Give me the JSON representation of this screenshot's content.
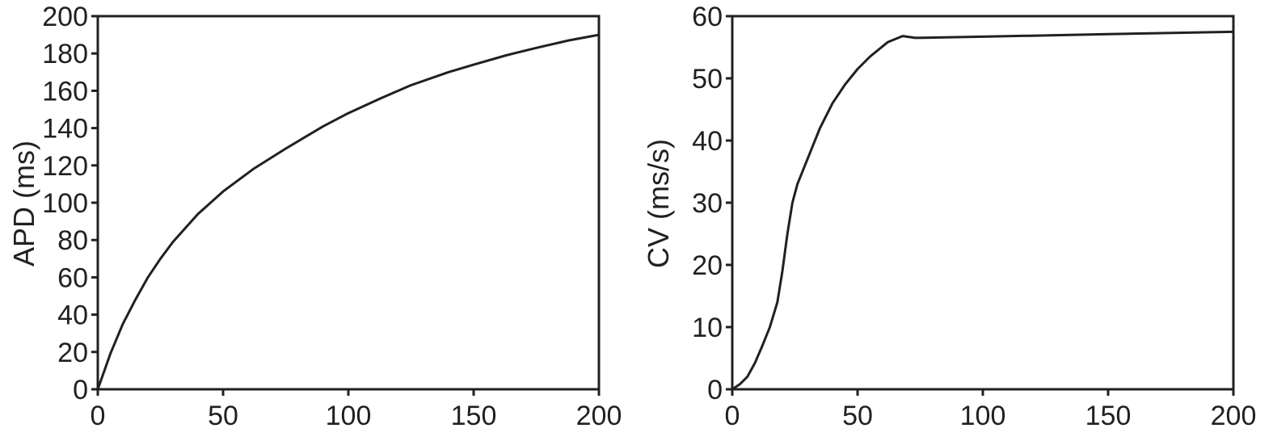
{
  "chart_data": [
    {
      "type": "line",
      "title": "",
      "xlabel": "",
      "ylabel": "APD (ms)",
      "xlim": [
        0,
        200
      ],
      "ylim": [
        0,
        200
      ],
      "xticks": [
        0,
        50,
        100,
        150,
        200
      ],
      "yticks": [
        0,
        20,
        40,
        60,
        80,
        100,
        120,
        140,
        160,
        180,
        200
      ],
      "xtick_labels": [
        "0",
        "50",
        "100",
        "150",
        "200"
      ],
      "ytick_labels": [
        "0",
        "20",
        "40",
        "60",
        "80",
        "100",
        "120",
        "140",
        "160",
        "180",
        "200"
      ],
      "grid": false,
      "line_color": "#231f20",
      "series": [
        {
          "x": [
            0,
            5,
            10,
            15,
            20,
            25,
            30,
            40,
            50,
            62,
            75,
            90,
            100,
            113,
            125,
            140,
            150,
            163,
            175,
            188,
            200
          ],
          "y": [
            0,
            19,
            35,
            48,
            60,
            70,
            79,
            94,
            106,
            118,
            129,
            141,
            148,
            156,
            163,
            170,
            174,
            179,
            183,
            187,
            190
          ]
        }
      ]
    },
    {
      "type": "line",
      "title": "",
      "xlabel": "",
      "ylabel": "CV (ms/s)",
      "xlim": [
        0,
        200
      ],
      "ylim": [
        0,
        60
      ],
      "xticks": [
        0,
        50,
        100,
        150,
        200
      ],
      "yticks": [
        0,
        10,
        20,
        30,
        40,
        50,
        60
      ],
      "xtick_labels": [
        "0",
        "50",
        "100",
        "150",
        "200"
      ],
      "ytick_labels": [
        "0",
        "10",
        "20",
        "30",
        "40",
        "50",
        "60"
      ],
      "grid": false,
      "line_color": "#231f20",
      "series": [
        {
          "x": [
            0,
            3,
            6,
            9,
            12,
            15,
            18,
            19,
            20,
            21,
            22,
            23,
            24,
            26,
            28,
            30,
            35,
            40,
            45,
            50,
            55,
            62,
            68,
            73,
            100,
            150,
            200
          ],
          "y": [
            0,
            0.8,
            2,
            4.2,
            7,
            10,
            14,
            16.5,
            19,
            22,
            25,
            27.5,
            30,
            33,
            35,
            37,
            42,
            46,
            49,
            51.5,
            53.5,
            55.8,
            56.8,
            56.5,
            56.7,
            57.1,
            57.5
          ]
        }
      ]
    }
  ]
}
